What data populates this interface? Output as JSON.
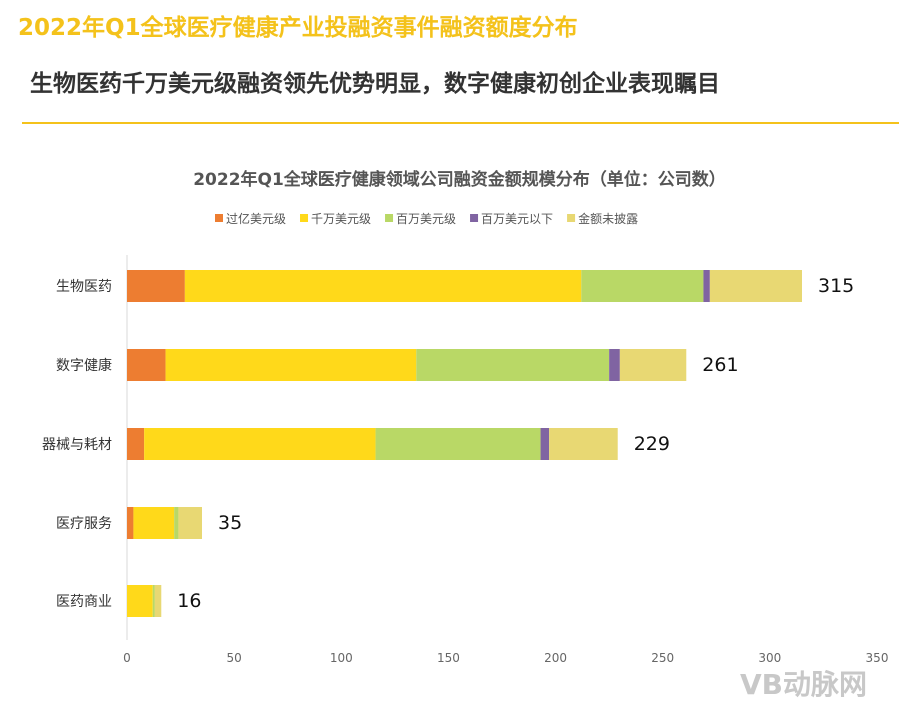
{
  "header": {
    "title": "2022年Q1全球医疗健康产业投融资事件融资额度分布",
    "subtitle": "生物医药千万美元级融资领先优势明显，数字健康初创企业表现瞩目"
  },
  "watermark": "VB动脉网",
  "chart_data": {
    "type": "bar",
    "orientation": "horizontal",
    "stacked": true,
    "title": "2022年Q1全球医疗健康领域公司融资金额规模分布（单位：公司数）",
    "categories": [
      "生物医药",
      "数字健康",
      "器械与耗材",
      "医疗服务",
      "医药商业"
    ],
    "series": [
      {
        "name": "过亿美元级",
        "color": "#ed7d31",
        "values": [
          27,
          18,
          8,
          3,
          0
        ]
      },
      {
        "name": "千万美元级",
        "color": "#ffd91a",
        "values": [
          185,
          117,
          108,
          19,
          12
        ]
      },
      {
        "name": "百万美元级",
        "color": "#b9d866",
        "values": [
          57,
          90,
          77,
          2,
          1
        ]
      },
      {
        "name": "百万美元以下",
        "color": "#8064a2",
        "values": [
          3,
          5,
          4,
          0,
          0
        ]
      },
      {
        "name": "金额未披露",
        "color": "#e8d873",
        "values": [
          43,
          31,
          32,
          11,
          3
        ]
      }
    ],
    "totals": [
      315,
      261,
      229,
      35,
      16
    ],
    "xlim": [
      0,
      350
    ],
    "xticks": [
      0,
      50,
      100,
      150,
      200,
      250,
      300,
      350
    ],
    "legend": "top",
    "grid": false
  }
}
